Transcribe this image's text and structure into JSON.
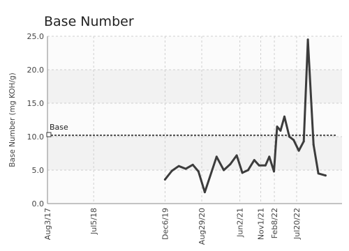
{
  "chart_data": {
    "type": "line",
    "title": "Base Number",
    "ylabel": "Base Number (mg KOH/g)",
    "ylim": [
      0,
      25
    ],
    "yticks": [
      "0.0",
      "5.0",
      "10.0",
      "15.0",
      "20.0",
      "25.0"
    ],
    "xlim": [
      "2017-08-03",
      "2023-06-15"
    ],
    "xticks": [
      {
        "label": "Aug3/17",
        "date": "2017-08-03"
      },
      {
        "label": "Jul5/18",
        "date": "2018-07-05"
      },
      {
        "label": "Dec6/19",
        "date": "2019-12-06"
      },
      {
        "label": "Aug29/20",
        "date": "2020-08-29"
      },
      {
        "label": "Jun2/21",
        "date": "2021-06-02"
      },
      {
        "label": "Nov1/21",
        "date": "2021-11-01"
      },
      {
        "label": "Feb8/22",
        "date": "2022-02-08"
      },
      {
        "label": "Jul20/22",
        "date": "2022-07-20"
      }
    ],
    "grid": true,
    "series": [
      {
        "name": "",
        "color": "#3c3c3c",
        "points": [
          {
            "x": "2019-12-06",
            "y": 3.6
          },
          {
            "x": "2020-01-25",
            "y": 4.9
          },
          {
            "x": "2020-03-15",
            "y": 5.6
          },
          {
            "x": "2020-05-05",
            "y": 5.2
          },
          {
            "x": "2020-06-25",
            "y": 5.8
          },
          {
            "x": "2020-08-05",
            "y": 4.8
          },
          {
            "x": "2020-09-20",
            "y": 1.7
          },
          {
            "x": "2020-12-15",
            "y": 7.0
          },
          {
            "x": "2021-02-05",
            "y": 5.0
          },
          {
            "x": "2021-03-25",
            "y": 5.9
          },
          {
            "x": "2021-05-10",
            "y": 7.2
          },
          {
            "x": "2021-06-20",
            "y": 4.6
          },
          {
            "x": "2021-08-01",
            "y": 5.0
          },
          {
            "x": "2021-09-15",
            "y": 6.5
          },
          {
            "x": "2021-10-20",
            "y": 5.7
          },
          {
            "x": "2021-12-05",
            "y": 5.7
          },
          {
            "x": "2022-01-02",
            "y": 7.0
          },
          {
            "x": "2022-02-05",
            "y": 4.8
          },
          {
            "x": "2022-02-28",
            "y": 11.5
          },
          {
            "x": "2022-03-25",
            "y": 10.9
          },
          {
            "x": "2022-04-22",
            "y": 13.0
          },
          {
            "x": "2022-05-28",
            "y": 10.0
          },
          {
            "x": "2022-06-28",
            "y": 9.5
          },
          {
            "x": "2022-08-05",
            "y": 7.9
          },
          {
            "x": "2022-09-10",
            "y": 9.3
          },
          {
            "x": "2022-10-10",
            "y": 24.5
          },
          {
            "x": "2022-11-20",
            "y": 8.8
          },
          {
            "x": "2022-12-25",
            "y": 4.5
          },
          {
            "x": "2023-02-15",
            "y": 4.2
          }
        ]
      }
    ],
    "reference_line": {
      "label": "Base",
      "y": 10.2,
      "color": "#555555"
    }
  }
}
